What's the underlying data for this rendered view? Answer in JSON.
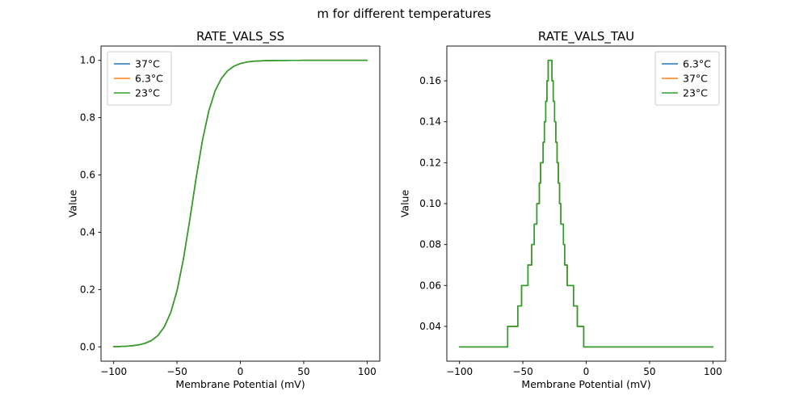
{
  "figure": {
    "suptitle": "m for different temperatures",
    "background": "#ffffff"
  },
  "chart_data": [
    {
      "type": "line",
      "title": "RATE_VALS_SS",
      "xlabel": "Membrane Potential (mV)",
      "ylabel": "Value",
      "xlim": [
        -110,
        110
      ],
      "ylim": [
        -0.05,
        1.05
      ],
      "xticks": [
        -100,
        -50,
        0,
        50,
        100
      ],
      "xticklabels": [
        "−100",
        "−50",
        "0",
        "50",
        "100"
      ],
      "yticks": [
        0.0,
        0.2,
        0.4,
        0.6,
        0.8,
        1.0
      ],
      "yticklabels": [
        "0.0",
        "0.2",
        "0.4",
        "0.6",
        "0.8",
        "1.0"
      ],
      "grid": false,
      "legend": {
        "position": "upper-left",
        "entries": [
          {
            "label": "37°C",
            "color": "#1f77b4"
          },
          {
            "label": "6.3°C",
            "color": "#ff7f0e"
          },
          {
            "label": "23°C",
            "color": "#2ca02c"
          }
        ]
      },
      "note": "all three temperature curves overlap exactly",
      "points": [
        [
          -100,
          0.0007
        ],
        [
          -95,
          0.0012
        ],
        [
          -90,
          0.0022
        ],
        [
          -85,
          0.004
        ],
        [
          -80,
          0.0071
        ],
        [
          -75,
          0.0127
        ],
        [
          -70,
          0.0226
        ],
        [
          -65,
          0.0398
        ],
        [
          -60,
          0.0699
        ],
        [
          -55,
          0.1193
        ],
        [
          -50,
          0.196
        ],
        [
          -45,
          0.305
        ],
        [
          -40,
          0.441
        ],
        [
          -35,
          0.587
        ],
        [
          -30,
          0.719
        ],
        [
          -25,
          0.822
        ],
        [
          -20,
          0.893
        ],
        [
          -15,
          0.937
        ],
        [
          -10,
          0.964
        ],
        [
          -5,
          0.98
        ],
        [
          0,
          0.989
        ],
        [
          5,
          0.994
        ],
        [
          10,
          0.997
        ],
        [
          15,
          0.998
        ],
        [
          20,
          0.999
        ],
        [
          25,
          0.9994
        ],
        [
          30,
          0.9997
        ],
        [
          35,
          0.9998
        ],
        [
          40,
          0.9999
        ],
        [
          45,
          0.9999
        ],
        [
          50,
          1.0
        ],
        [
          60,
          1.0
        ],
        [
          70,
          1.0
        ],
        [
          80,
          1.0
        ],
        [
          90,
          1.0
        ],
        [
          100,
          1.0
        ]
      ]
    },
    {
      "type": "line",
      "title": "RATE_VALS_TAU",
      "xlabel": "Membrane Potential (mV)",
      "ylabel": "Value",
      "xlim": [
        -110,
        110
      ],
      "ylim": [
        0.023,
        0.177
      ],
      "xticks": [
        -100,
        -50,
        0,
        50,
        100
      ],
      "xticklabels": [
        "−100",
        "−50",
        "0",
        "50",
        "100"
      ],
      "yticks": [
        0.04,
        0.06,
        0.08,
        0.1,
        0.12,
        0.14,
        0.16
      ],
      "yticklabels": [
        "0.04",
        "0.06",
        "0.08",
        "0.10",
        "0.12",
        "0.14",
        "0.16"
      ],
      "grid": false,
      "legend": {
        "position": "upper-right",
        "entries": [
          {
            "label": "6.3°C",
            "color": "#1f77b4"
          },
          {
            "label": "37°C",
            "color": "#ff7f0e"
          },
          {
            "label": "23°C",
            "color": "#2ca02c"
          }
        ]
      },
      "note": "all three temperature curves overlap exactly; values quantized in 0.01 steps, baseline 0.03, peak 0.17 near −28 mV",
      "points": [
        [
          -100,
          0.03
        ],
        [
          -62,
          0.03
        ],
        [
          -62,
          0.04
        ],
        [
          -54,
          0.04
        ],
        [
          -54,
          0.05
        ],
        [
          -51,
          0.05
        ],
        [
          -51,
          0.06
        ],
        [
          -46,
          0.06
        ],
        [
          -46,
          0.07
        ],
        [
          -43,
          0.07
        ],
        [
          -43,
          0.08
        ],
        [
          -41,
          0.08
        ],
        [
          -41,
          0.09
        ],
        [
          -39,
          0.09
        ],
        [
          -39,
          0.1
        ],
        [
          -37,
          0.1
        ],
        [
          -37,
          0.11
        ],
        [
          -36,
          0.11
        ],
        [
          -36,
          0.12
        ],
        [
          -34,
          0.12
        ],
        [
          -34,
          0.13
        ],
        [
          -33,
          0.13
        ],
        [
          -33,
          0.14
        ],
        [
          -32,
          0.14
        ],
        [
          -32,
          0.15
        ],
        [
          -31,
          0.15
        ],
        [
          -31,
          0.16
        ],
        [
          -30,
          0.16
        ],
        [
          -30,
          0.17
        ],
        [
          -27,
          0.17
        ],
        [
          -27,
          0.16
        ],
        [
          -26,
          0.16
        ],
        [
          -26,
          0.15
        ],
        [
          -25,
          0.15
        ],
        [
          -25,
          0.14
        ],
        [
          -24,
          0.14
        ],
        [
          -24,
          0.13
        ],
        [
          -23,
          0.13
        ],
        [
          -23,
          0.12
        ],
        [
          -22,
          0.12
        ],
        [
          -22,
          0.11
        ],
        [
          -21,
          0.11
        ],
        [
          -21,
          0.1
        ],
        [
          -20,
          0.1
        ],
        [
          -20,
          0.09
        ],
        [
          -18,
          0.09
        ],
        [
          -18,
          0.08
        ],
        [
          -17,
          0.08
        ],
        [
          -17,
          0.07
        ],
        [
          -15,
          0.07
        ],
        [
          -15,
          0.06
        ],
        [
          -10,
          0.06
        ],
        [
          -10,
          0.05
        ],
        [
          -7,
          0.05
        ],
        [
          -7,
          0.04
        ],
        [
          -2,
          0.04
        ],
        [
          -2,
          0.03
        ],
        [
          100,
          0.03
        ]
      ]
    }
  ]
}
